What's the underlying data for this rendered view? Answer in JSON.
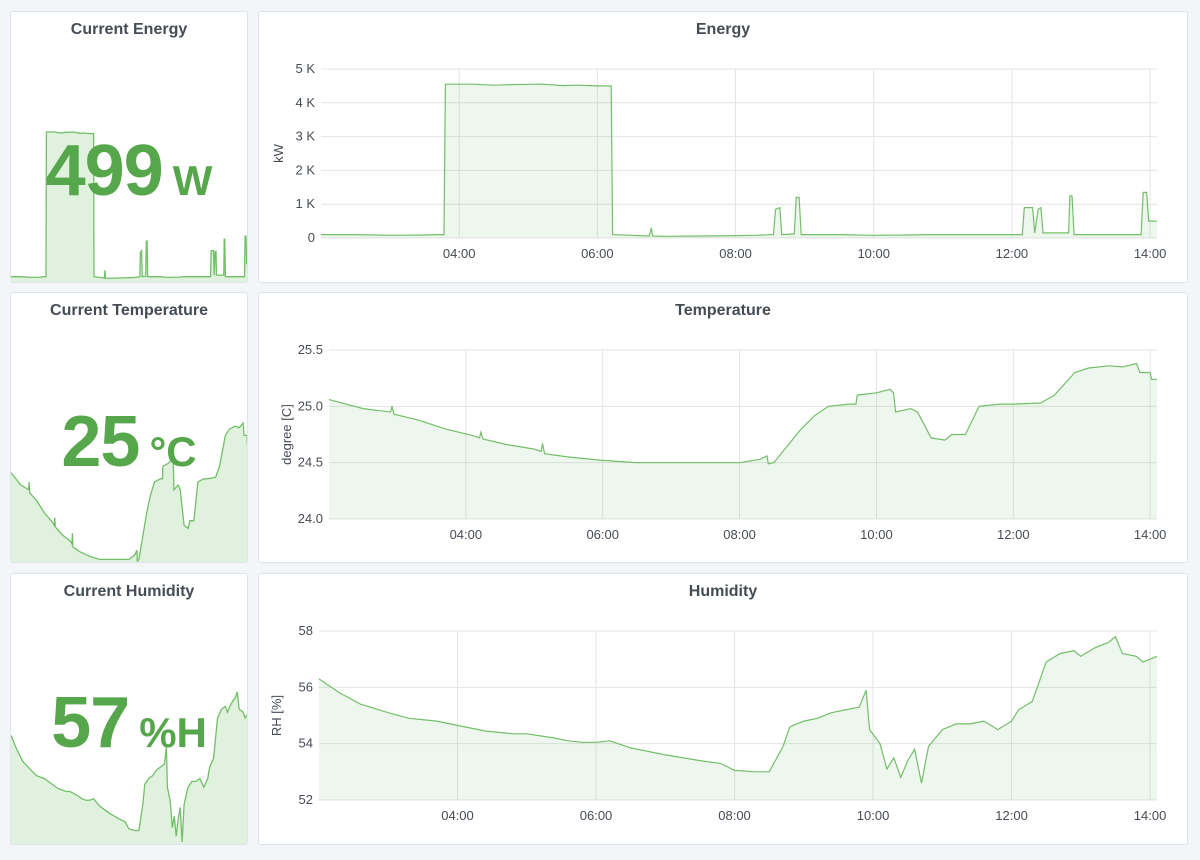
{
  "colors": {
    "series": "#73bf69",
    "fill": "#73bf69",
    "stat": "#56a64b",
    "grid": "#e4e4e4",
    "panel_border": "#dde4ed"
  },
  "stats": {
    "energy": {
      "title": "Current Energy",
      "value": "499",
      "unit": "W"
    },
    "temperature": {
      "title": "Current Temperature",
      "value": "25",
      "unit": "°C"
    },
    "humidity": {
      "title": "Current Humidity",
      "value": "57",
      "unit": "%H"
    }
  },
  "chart_data": [
    {
      "id": "energy",
      "type": "area",
      "title": "Energy",
      "xlabel": "",
      "ylabel": "kW",
      "x_ticks": [
        "04:00",
        "06:00",
        "08:00",
        "10:00",
        "12:00",
        "14:00"
      ],
      "y_ticks": [
        "0",
        "1 K",
        "2 K",
        "3 K",
        "4 K",
        "5 K"
      ],
      "xlim": [
        2.0,
        14.1
      ],
      "ylim": [
        0,
        5000
      ],
      "grid": true,
      "legend": "none",
      "series": [
        {
          "points": [
            [
              2.0,
              100
            ],
            [
              2.5,
              100
            ],
            [
              3.0,
              80
            ],
            [
              3.5,
              90
            ],
            [
              3.7,
              100
            ],
            [
              3.78,
              100
            ],
            [
              3.8,
              4550
            ],
            [
              4.2,
              4550
            ],
            [
              4.5,
              4520
            ],
            [
              4.8,
              4540
            ],
            [
              5.2,
              4550
            ],
            [
              5.5,
              4510
            ],
            [
              5.7,
              4520
            ],
            [
              6.0,
              4500
            ],
            [
              6.2,
              4500
            ],
            [
              6.22,
              100
            ],
            [
              6.5,
              80
            ],
            [
              6.75,
              60
            ],
            [
              6.78,
              300
            ],
            [
              6.8,
              60
            ],
            [
              7.0,
              50
            ],
            [
              7.5,
              60
            ],
            [
              8.0,
              70
            ],
            [
              8.3,
              80
            ],
            [
              8.55,
              100
            ],
            [
              8.58,
              850
            ],
            [
              8.64,
              900
            ],
            [
              8.67,
              100
            ],
            [
              8.85,
              120
            ],
            [
              8.88,
              1200
            ],
            [
              8.92,
              1200
            ],
            [
              8.95,
              100
            ],
            [
              9.5,
              100
            ],
            [
              10.0,
              80
            ],
            [
              10.5,
              90
            ],
            [
              10.8,
              100
            ],
            [
              11.0,
              100
            ],
            [
              11.5,
              100
            ],
            [
              12.0,
              100
            ],
            [
              12.15,
              100
            ],
            [
              12.18,
              900
            ],
            [
              12.3,
              900
            ],
            [
              12.33,
              150
            ],
            [
              12.38,
              850
            ],
            [
              12.42,
              900
            ],
            [
              12.45,
              150
            ],
            [
              12.6,
              150
            ],
            [
              12.82,
              150
            ],
            [
              12.84,
              1250
            ],
            [
              12.87,
              1250
            ],
            [
              12.9,
              100
            ],
            [
              13.2,
              100
            ],
            [
              13.5,
              100
            ],
            [
              13.8,
              100
            ],
            [
              13.87,
              100
            ],
            [
              13.9,
              1350
            ],
            [
              13.95,
              1350
            ],
            [
              13.98,
              500
            ],
            [
              14.1,
              500
            ]
          ]
        }
      ]
    },
    {
      "id": "temperature",
      "type": "area",
      "title": "Temperature",
      "xlabel": "",
      "ylabel": "degree [C]",
      "x_ticks": [
        "04:00",
        "06:00",
        "08:00",
        "10:00",
        "12:00",
        "14:00"
      ],
      "y_ticks": [
        "24.0",
        "24.5",
        "25.0",
        "25.5"
      ],
      "xlim": [
        2.0,
        14.1
      ],
      "ylim": [
        24.0,
        25.5
      ],
      "grid": true,
      "legend": "none",
      "series": [
        {
          "points": [
            [
              2.0,
              25.06
            ],
            [
              2.5,
              24.98
            ],
            [
              2.9,
              24.95
            ],
            [
              2.92,
              25.0
            ],
            [
              2.95,
              24.93
            ],
            [
              3.3,
              24.88
            ],
            [
              3.7,
              24.8
            ],
            [
              4.1,
              24.74
            ],
            [
              4.2,
              24.72
            ],
            [
              4.22,
              24.77
            ],
            [
              4.25,
              24.71
            ],
            [
              4.6,
              24.66
            ],
            [
              5.0,
              24.62
            ],
            [
              5.1,
              24.6
            ],
            [
              5.12,
              24.67
            ],
            [
              5.15,
              24.58
            ],
            [
              5.5,
              24.55
            ],
            [
              6.0,
              24.52
            ],
            [
              6.5,
              24.5
            ],
            [
              7.0,
              24.5
            ],
            [
              7.5,
              24.5
            ],
            [
              8.0,
              24.5
            ],
            [
              8.3,
              24.53
            ],
            [
              8.4,
              24.56
            ],
            [
              8.42,
              24.49
            ],
            [
              8.5,
              24.5
            ],
            [
              8.7,
              24.65
            ],
            [
              8.9,
              24.8
            ],
            [
              9.1,
              24.92
            ],
            [
              9.3,
              25.0
            ],
            [
              9.6,
              25.02
            ],
            [
              9.7,
              25.02
            ],
            [
              9.72,
              25.1
            ],
            [
              10.0,
              25.12
            ],
            [
              10.2,
              25.15
            ],
            [
              10.25,
              25.12
            ],
            [
              10.28,
              24.95
            ],
            [
              10.5,
              24.98
            ],
            [
              10.6,
              24.95
            ],
            [
              10.8,
              24.72
            ],
            [
              11.0,
              24.7
            ],
            [
              11.1,
              24.75
            ],
            [
              11.3,
              24.75
            ],
            [
              11.5,
              25.0
            ],
            [
              11.8,
              25.02
            ],
            [
              12.0,
              25.02
            ],
            [
              12.4,
              25.03
            ],
            [
              12.6,
              25.1
            ],
            [
              12.9,
              25.3
            ],
            [
              13.1,
              25.34
            ],
            [
              13.4,
              25.36
            ],
            [
              13.6,
              25.35
            ],
            [
              13.8,
              25.38
            ],
            [
              13.85,
              25.3
            ],
            [
              14.0,
              25.3
            ],
            [
              14.02,
              25.24
            ],
            [
              14.1,
              25.24
            ]
          ]
        }
      ]
    },
    {
      "id": "humidity",
      "type": "area",
      "title": "Humidity",
      "xlabel": "",
      "ylabel": "RH [%]",
      "x_ticks": [
        "04:00",
        "06:00",
        "08:00",
        "10:00",
        "12:00",
        "14:00"
      ],
      "y_ticks": [
        "52",
        "54",
        "56",
        "58"
      ],
      "xlim": [
        2.0,
        14.1
      ],
      "ylim": [
        52,
        58
      ],
      "grid": true,
      "legend": "none",
      "series": [
        {
          "points": [
            [
              2.0,
              56.3
            ],
            [
              2.3,
              55.8
            ],
            [
              2.6,
              55.4
            ],
            [
              3.0,
              55.1
            ],
            [
              3.3,
              54.9
            ],
            [
              3.7,
              54.8
            ],
            [
              4.0,
              54.65
            ],
            [
              4.4,
              54.45
            ],
            [
              4.8,
              54.35
            ],
            [
              5.0,
              54.35
            ],
            [
              5.4,
              54.2
            ],
            [
              5.6,
              54.1
            ],
            [
              5.8,
              54.05
            ],
            [
              6.0,
              54.05
            ],
            [
              6.2,
              54.1
            ],
            [
              6.5,
              53.85
            ],
            [
              7.0,
              53.6
            ],
            [
              7.5,
              53.4
            ],
            [
              7.8,
              53.3
            ],
            [
              8.0,
              53.05
            ],
            [
              8.3,
              53.0
            ],
            [
              8.5,
              53.0
            ],
            [
              8.7,
              53.9
            ],
            [
              8.8,
              54.6
            ],
            [
              9.0,
              54.8
            ],
            [
              9.2,
              54.9
            ],
            [
              9.4,
              55.1
            ],
            [
              9.6,
              55.2
            ],
            [
              9.8,
              55.3
            ],
            [
              9.9,
              55.9
            ],
            [
              9.95,
              54.5
            ],
            [
              10.1,
              54.0
            ],
            [
              10.2,
              53.1
            ],
            [
              10.3,
              53.5
            ],
            [
              10.4,
              52.8
            ],
            [
              10.5,
              53.4
            ],
            [
              10.6,
              53.8
            ],
            [
              10.7,
              52.6
            ],
            [
              10.8,
              53.9
            ],
            [
              11.0,
              54.5
            ],
            [
              11.2,
              54.7
            ],
            [
              11.4,
              54.7
            ],
            [
              11.6,
              54.8
            ],
            [
              11.8,
              54.5
            ],
            [
              12.0,
              54.8
            ],
            [
              12.1,
              55.2
            ],
            [
              12.3,
              55.5
            ],
            [
              12.5,
              56.9
            ],
            [
              12.7,
              57.2
            ],
            [
              12.9,
              57.3
            ],
            [
              13.0,
              57.1
            ],
            [
              13.2,
              57.4
            ],
            [
              13.4,
              57.6
            ],
            [
              13.5,
              57.8
            ],
            [
              13.6,
              57.2
            ],
            [
              13.8,
              57.1
            ],
            [
              13.9,
              56.9
            ],
            [
              14.0,
              57.0
            ],
            [
              14.1,
              57.1
            ]
          ]
        }
      ]
    }
  ]
}
